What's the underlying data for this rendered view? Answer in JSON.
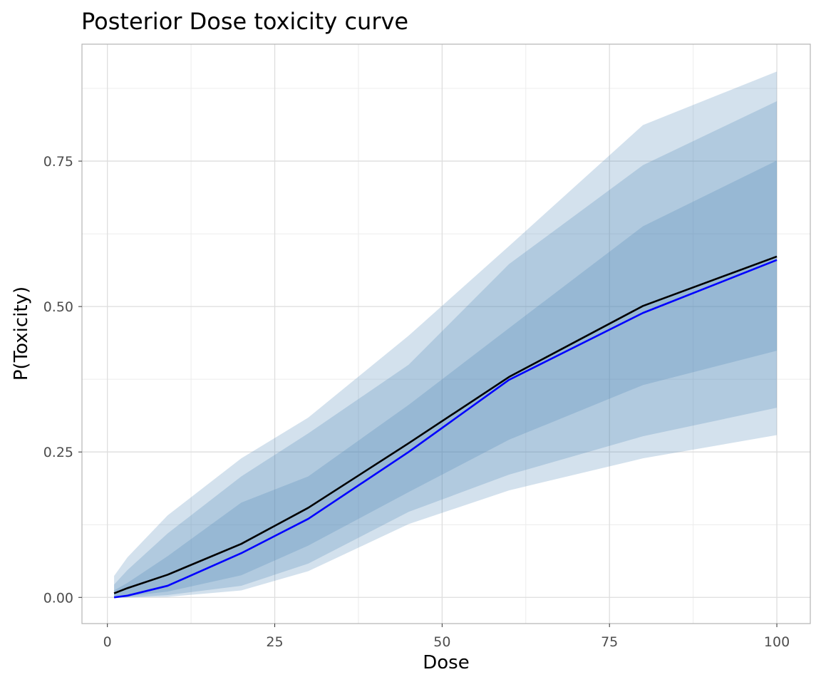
{
  "chart_data": {
    "type": "area",
    "title": "Posterior Dose toxicity curve",
    "xlabel": "Dose",
    "ylabel": "P(Toxicity)",
    "xlim": [
      -3.8,
      105
    ],
    "ylim": [
      -0.045,
      0.951
    ],
    "x_ticks": [
      0,
      25,
      50,
      75,
      100
    ],
    "x_tick_labels": [
      "0",
      "25",
      "50",
      "75",
      "100"
    ],
    "y_ticks": [
      0,
      0.25,
      0.5,
      0.75
    ],
    "y_tick_labels": [
      "0.00",
      "0.25",
      "0.50",
      "0.75"
    ],
    "grid": true,
    "x": [
      1,
      3,
      9,
      20,
      30,
      45,
      60,
      80,
      100
    ],
    "bands": [
      {
        "lower": [
          0.0,
          0.0,
          0.001,
          0.012,
          0.045,
          0.126,
          0.184,
          0.239,
          0.279
        ],
        "upper": [
          0.037,
          0.069,
          0.141,
          0.239,
          0.309,
          0.45,
          0.604,
          0.812,
          0.904
        ],
        "color": "#4682b4"
      },
      {
        "lower": [
          0.0,
          0.0,
          0.004,
          0.02,
          0.058,
          0.147,
          0.211,
          0.277,
          0.326
        ],
        "upper": [
          0.022,
          0.047,
          0.11,
          0.208,
          0.282,
          0.4,
          0.573,
          0.743,
          0.853
        ],
        "color": "#4682b4"
      },
      {
        "lower": [
          0.0,
          0.002,
          0.01,
          0.038,
          0.089,
          0.181,
          0.271,
          0.365,
          0.424
        ],
        "upper": [
          0.012,
          0.025,
          0.071,
          0.163,
          0.208,
          0.331,
          0.463,
          0.638,
          0.751
        ],
        "color": "#4682b4"
      }
    ],
    "series": [
      {
        "values": [
          0.007,
          0.016,
          0.039,
          0.092,
          0.154,
          0.265,
          0.379,
          0.501,
          0.586
        ],
        "color": "#000000"
      },
      {
        "values": [
          0.0,
          0.003,
          0.02,
          0.076,
          0.135,
          0.25,
          0.374,
          0.489,
          0.58
        ],
        "color": "#0000ff"
      }
    ]
  }
}
